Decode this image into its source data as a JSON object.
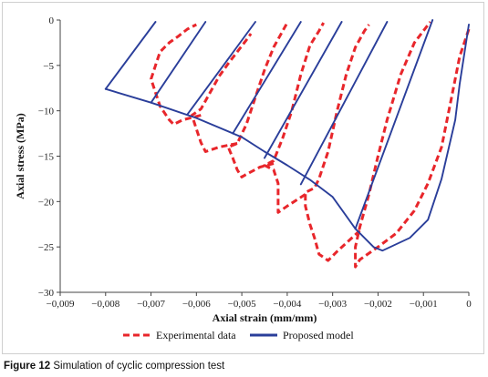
{
  "figure": {
    "caption_label": "Figure 12",
    "caption_text": "Simulation of cyclic compression test"
  },
  "chart_data": {
    "type": "line",
    "xlabel": "Axial strain (mm/mm)",
    "ylabel": "Axial stress (MPa)",
    "xlim": [
      -0.009,
      0
    ],
    "ylim": [
      -30,
      0
    ],
    "x_ticks": [
      -0.009,
      -0.008,
      -0.007,
      -0.006,
      -0.005,
      -0.004,
      -0.003,
      -0.002,
      -0.001,
      0
    ],
    "x_tick_labels": [
      "−0,009",
      "−0,008",
      "−0,007",
      "−0,006",
      "−0,005",
      "−0,004",
      "−0,003",
      "−0,002",
      "−0,001",
      "0"
    ],
    "y_ticks": [
      0,
      -5,
      -10,
      -15,
      -20,
      -25,
      -30
    ],
    "y_tick_labels": [
      "0",
      "−5",
      "−10",
      "−15",
      "−20",
      "−25",
      "−30"
    ],
    "grid": false,
    "legend_position": "bottom",
    "series": [
      {
        "name": "Experimental data",
        "color": "#e8262b",
        "style": "dashed",
        "segments": [
          [
            [
              0,
              -1
            ],
            [
              -0.0002,
              -4
            ],
            [
              -0.0004,
              -9
            ],
            [
              -0.0006,
              -14
            ],
            [
              -0.0009,
              -18
            ],
            [
              -0.0012,
              -21
            ],
            [
              -0.0016,
              -23.5
            ],
            [
              -0.002,
              -25
            ],
            [
              -0.0024,
              -26.4
            ],
            [
              -0.0025,
              -27.2
            ],
            [
              -0.0025,
              -25
            ],
            [
              -0.0024,
              -22.8
            ],
            [
              -0.0022,
              -19.2
            ],
            [
              -0.002,
              -15
            ],
            [
              -0.0018,
              -11
            ],
            [
              -0.0015,
              -6
            ],
            [
              -0.0012,
              -2.5
            ],
            [
              -0.00085,
              -0.2
            ]
          ],
          [
            [
              -0.0024,
              -23.2
            ],
            [
              -0.0029,
              -25.5
            ],
            [
              -0.0031,
              -26.5
            ],
            [
              -0.0033,
              -25.8
            ],
            [
              -0.0034,
              -24
            ],
            [
              -0.0035,
              -22.5
            ],
            [
              -0.0036,
              -20.5
            ],
            [
              -0.0036,
              -19
            ],
            [
              -0.0034,
              -18.5
            ],
            [
              -0.0033,
              -17.5
            ],
            [
              -0.0031,
              -14.5
            ],
            [
              -0.0029,
              -10
            ],
            [
              -0.0027,
              -6
            ],
            [
              -0.0025,
              -3
            ],
            [
              -0.0023,
              -1.2
            ],
            [
              -0.0022,
              -0.5
            ]
          ],
          [
            [
              -0.0036,
              -19.2
            ],
            [
              -0.004,
              -20.5
            ],
            [
              -0.0042,
              -21.2
            ],
            [
              -0.0042,
              -19.5
            ],
            [
              -0.0042,
              -18
            ],
            [
              -0.0043,
              -16.5
            ],
            [
              -0.0045,
              -16
            ],
            [
              -0.0043,
              -15.5
            ],
            [
              -0.0041,
              -13
            ],
            [
              -0.0039,
              -10
            ],
            [
              -0.0037,
              -6
            ],
            [
              -0.0035,
              -2.8
            ],
            [
              -0.0033,
              -1.2
            ],
            [
              -0.0032,
              -0.3
            ]
          ],
          [
            [
              -0.0043,
              -15.8
            ],
            [
              -0.0046,
              -16.2
            ],
            [
              -0.0049,
              -17
            ],
            [
              -0.005,
              -17.3
            ],
            [
              -0.0051,
              -16.5
            ],
            [
              -0.0052,
              -15.2
            ],
            [
              -0.0053,
              -14
            ],
            [
              -0.0051,
              -13.6
            ],
            [
              -0.0049,
              -11.5
            ],
            [
              -0.0047,
              -8.5
            ],
            [
              -0.0045,
              -5.5
            ],
            [
              -0.0043,
              -3
            ],
            [
              -0.0041,
              -1.2
            ],
            [
              -0.004,
              -0.3
            ]
          ],
          [
            [
              -0.0051,
              -13.6
            ],
            [
              -0.0055,
              -14
            ],
            [
              -0.0058,
              -14.5
            ],
            [
              -0.0059,
              -13.5
            ],
            [
              -0.006,
              -12
            ],
            [
              -0.0061,
              -10.5
            ],
            [
              -0.0059,
              -9.8
            ],
            [
              -0.0057,
              -8
            ],
            [
              -0.0055,
              -6.2
            ],
            [
              -0.0053,
              -4.8
            ],
            [
              -0.0051,
              -3.5
            ],
            [
              -0.0049,
              -2.2
            ],
            [
              -0.0048,
              -1.5
            ]
          ],
          [
            [
              -0.0059,
              -10.5
            ],
            [
              -0.0063,
              -11
            ],
            [
              -0.0065,
              -11.5
            ],
            [
              -0.0066,
              -11
            ],
            [
              -0.0068,
              -9.5
            ],
            [
              -0.0069,
              -8
            ],
            [
              -0.007,
              -6.5
            ],
            [
              -0.0069,
              -5
            ],
            [
              -0.0068,
              -3.5
            ],
            [
              -0.0066,
              -2.5
            ],
            [
              -0.0064,
              -1.8
            ],
            [
              -0.0062,
              -1
            ],
            [
              -0.006,
              -0.5
            ]
          ]
        ]
      },
      {
        "name": "Proposed model",
        "color": "#2a3e9a",
        "style": "solid",
        "segments": [
          [
            [
              -0.0008,
              0
            ],
            [
              -0.0025,
              -23
            ]
          ],
          [
            [
              -0.0025,
              -23
            ],
            [
              -0.0021,
              -25
            ],
            [
              -0.0019,
              -25.4
            ],
            [
              -0.0013,
              -24
            ],
            [
              -0.0009,
              -22
            ],
            [
              -0.0006,
              -17.5
            ],
            [
              -0.0003,
              -11
            ],
            [
              -0.0002,
              -7
            ],
            [
              0,
              -0.5
            ]
          ],
          [
            [
              -0.008,
              -7.6
            ],
            [
              -0.007,
              -9.1
            ],
            [
              -0.006,
              -10.8
            ],
            [
              -0.005,
              -12.9
            ],
            [
              -0.0045,
              -14.5
            ],
            [
              -0.004,
              -16
            ],
            [
              -0.0035,
              -17.6
            ],
            [
              -0.003,
              -19.5
            ],
            [
              -0.0025,
              -23
            ]
          ],
          [
            [
              -0.008,
              -7.6
            ],
            [
              -0.0069,
              -0.2
            ]
          ],
          [
            [
              -0.007,
              -9.1
            ],
            [
              -0.0058,
              -0.2
            ]
          ],
          [
            [
              -0.0062,
              -10.4
            ],
            [
              -0.0047,
              -0.2
            ]
          ],
          [
            [
              -0.0052,
              -12.5
            ],
            [
              -0.0037,
              -0.2
            ]
          ],
          [
            [
              -0.0045,
              -15.2
            ],
            [
              -0.0028,
              -0.2
            ]
          ],
          [
            [
              -0.0037,
              -18.1
            ],
            [
              -0.0018,
              -0.2
            ]
          ]
        ]
      }
    ]
  }
}
